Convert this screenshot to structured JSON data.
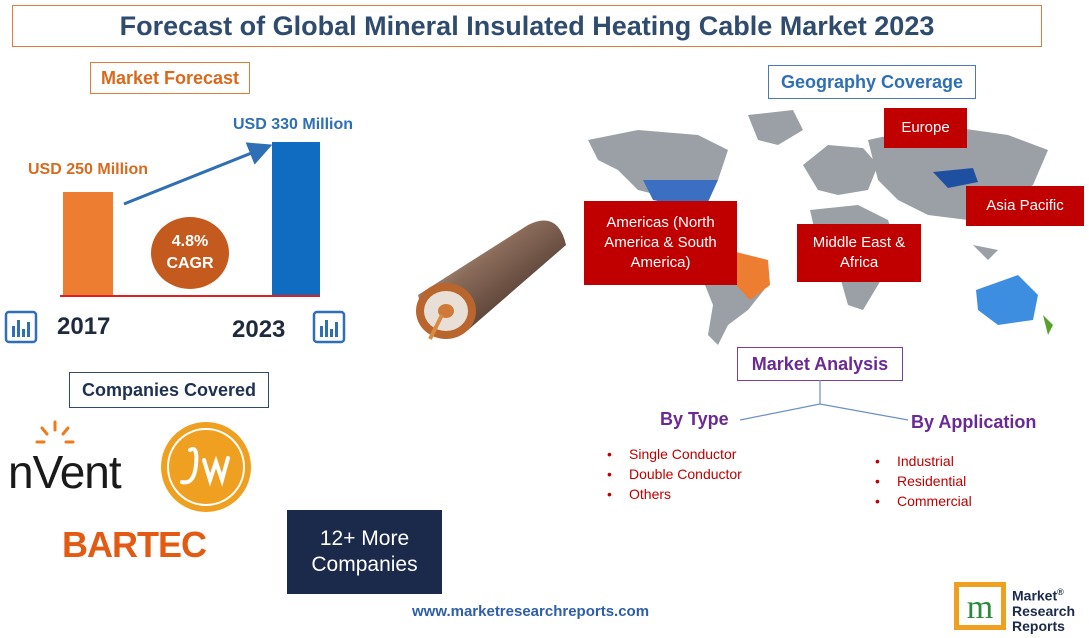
{
  "title": "Forecast of Global Mineral Insulated Heating Cable Market 2023",
  "market_forecast": {
    "label": "Market Forecast",
    "value_2017": "USD 250 Million",
    "value_2023": "USD 330 Million",
    "cagr_value": "4.8%",
    "cagr_label": "CAGR",
    "year_start": "2017",
    "year_end": "2023"
  },
  "chart_data": {
    "type": "bar",
    "categories": [
      "2017",
      "2023"
    ],
    "values": [
      250,
      330
    ],
    "ylabel": "",
    "colors": [
      "#ed7d31",
      "#0f6cc0"
    ]
  },
  "geography": {
    "label": "Geography Coverage",
    "regions": {
      "europe": "Europe",
      "asia_pacific": "Asia Pacific",
      "americas": "Americas (North America & South America)",
      "middle_east_africa": "Middle East & Africa"
    }
  },
  "market_analysis": {
    "label": "Market Analysis",
    "by_type": {
      "title": "By Type",
      "items": [
        "Single Conductor",
        "Double Conductor",
        "Others"
      ]
    },
    "by_application": {
      "title": "By Application",
      "items": [
        "Industrial",
        "Residential",
        "Commercial"
      ]
    }
  },
  "companies": {
    "label": "Companies Covered",
    "logos": [
      "nVent",
      "BARTEC"
    ],
    "more_line1": "12+ More",
    "more_line2": "Companies"
  },
  "website": "www.marketresearchreports.com",
  "brand": {
    "line1": "Market",
    "line2": "Research",
    "line3": "Reports"
  },
  "colors": {
    "accent_orange": "#ed7d31",
    "accent_blue": "#0f6cc0",
    "region_red": "#c00000",
    "navy": "#1b2a4a"
  }
}
